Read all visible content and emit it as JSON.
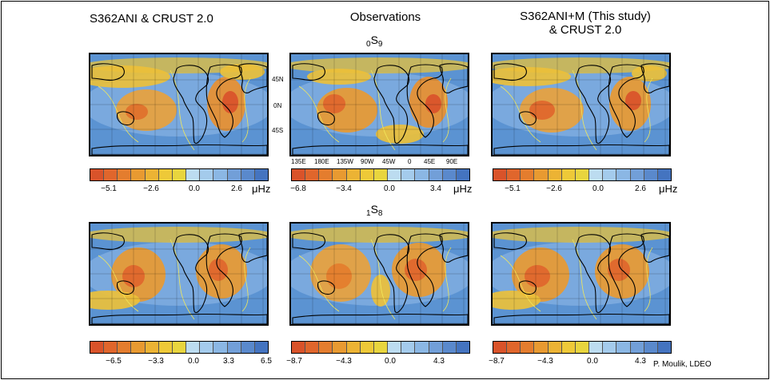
{
  "columns": {
    "left_title": "S362ANI & CRUST 2.0",
    "middle_title": "Observations",
    "right_title_line1": "S362ANI+M (This study)",
    "right_title_line2": "& CRUST 2.0"
  },
  "modes": {
    "top": {
      "pre": "0",
      "main": "S",
      "post": "9"
    },
    "bottom": {
      "pre": "1",
      "main": "S",
      "post": "8"
    }
  },
  "lat_labels": [
    "45N",
    "0N",
    "45S"
  ],
  "lon_labels": [
    "135E",
    "180E",
    "135W",
    "90W",
    "45W",
    "0",
    "45E",
    "90E"
  ],
  "colorbar_colors": [
    "#d9532a",
    "#e0662c",
    "#e47d2e",
    "#e89a31",
    "#ecb334",
    "#eec938",
    "#e8d53e",
    "#bcdcf0",
    "#a4cbec",
    "#8bb7e4",
    "#729fd8",
    "#5a89cc",
    "#4474c0"
  ],
  "unit": "μHz",
  "colorbars": {
    "top_left": [
      "−5.1",
      "−2.6",
      "0.0",
      "2.6"
    ],
    "top_middle": [
      "−6.8",
      "−3.4",
      "0.0",
      "3.4"
    ],
    "top_right": [
      "−5.1",
      "−2.6",
      "0.0",
      "2.6"
    ],
    "bottom_left": [
      "−6.5",
      "−3.3",
      "0.0",
      "3.3",
      "6.5"
    ],
    "bottom_middle": [
      "−8.7",
      "−4.3",
      "0.0",
      "4.3"
    ],
    "bottom_right": [
      "−8.7",
      "−4.3",
      "0.0",
      "4.3"
    ]
  },
  "credit": "P. Moulik, LDEO"
}
